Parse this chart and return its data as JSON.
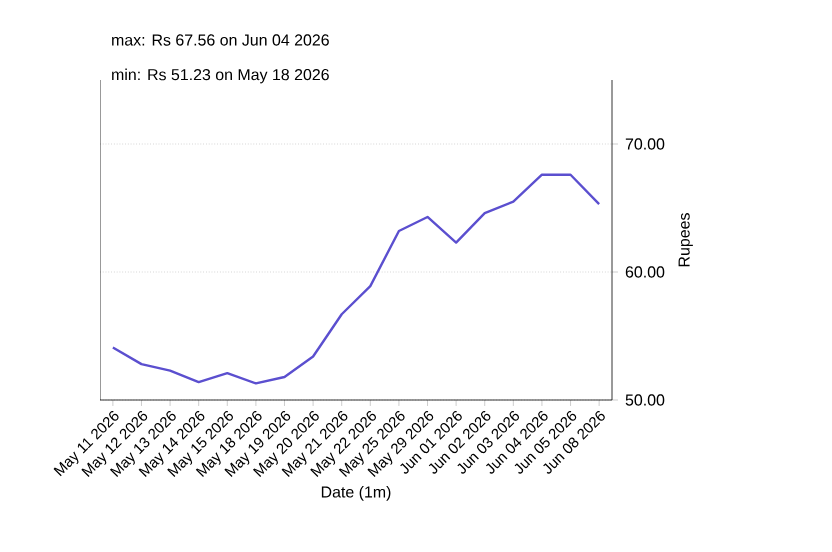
{
  "chart_data": {
    "type": "line",
    "title": "max: Rs 67.56 on Jun 04 2026",
    "subtitle": "min: Rs 51.23 on May 18 2026",
    "xlabel": "Date (1m)",
    "ylabel": "Rupees",
    "categories": [
      "May 11 2026",
      "May 12 2026",
      "May 13 2026",
      "May 14 2026",
      "May 15 2026",
      "May 18 2026",
      "May 19 2026",
      "May 20 2026",
      "May 21 2026",
      "May 22 2026",
      "May 25 2026",
      "May 29 2026",
      "Jun 01 2026",
      "Jun 02 2026",
      "Jun 03 2026",
      "Jun 04 2026",
      "Jun 05 2026",
      "Jun 08 2026"
    ],
    "series": [
      {
        "color": "#5b4fcf",
        "values": [
          54.1,
          52.8,
          52.3,
          51.4,
          52.1,
          51.3,
          51.8,
          53.4,
          56.7,
          58.9,
          63.2,
          64.3,
          62.3,
          64.6,
          65.5,
          67.6,
          67.6,
          65.3
        ]
      }
    ],
    "ylim": [
      50,
      75
    ],
    "yticks": [
      {
        "value": 50,
        "label": "50.00"
      },
      {
        "value": 60,
        "label": "60.00"
      },
      {
        "value": 70,
        "label": "70.00"
      }
    ],
    "grid": "y",
    "marker": "none",
    "line_style": "solid"
  }
}
